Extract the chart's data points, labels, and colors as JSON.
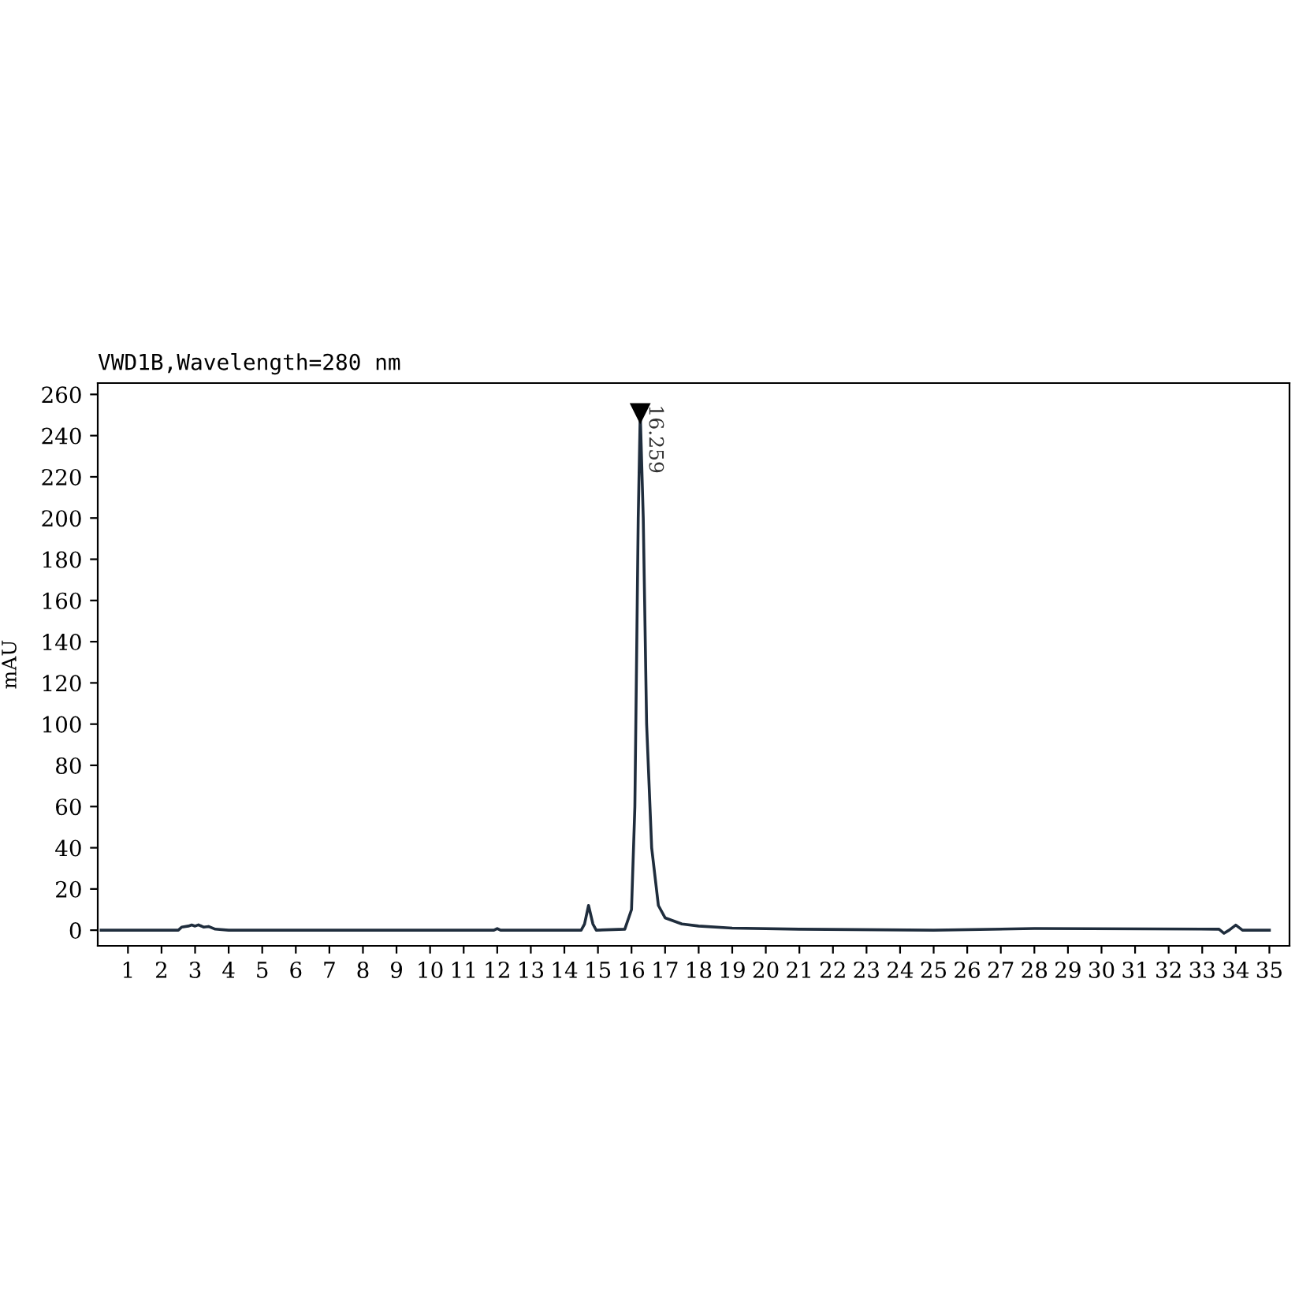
{
  "chart_data": {
    "type": "line",
    "title": "VWD1B,Wavelength=280 nm",
    "ylabel": "mAU",
    "x": [
      0.2,
      2.5,
      2.6,
      2.8,
      2.9,
      3.0,
      3.1,
      3.25,
      3.4,
      3.6,
      4,
      11.9,
      12,
      12.1,
      14.5,
      14.6,
      14.72,
      14.85,
      14.95,
      15.8,
      16.0,
      16.1,
      16.2,
      16.26,
      16.35,
      16.45,
      16.6,
      16.8,
      17.0,
      17.5,
      18,
      19,
      21,
      25,
      28,
      33.5,
      33.65,
      33.8,
      34,
      34.2,
      34.5,
      35
    ],
    "series": [
      {
        "color": "#1f2d3d",
        "values": [
          0,
          0,
          1.5,
          2,
          2.5,
          2,
          2.6,
          1.5,
          1.8,
          0.5,
          0,
          0,
          0.8,
          0,
          0,
          3,
          12,
          3,
          0,
          0.5,
          10,
          60,
          200,
          251,
          200,
          100,
          40,
          12,
          6,
          3,
          2,
          1,
          0.5,
          0,
          0.8,
          0.5,
          -1.5,
          0,
          2.5,
          0,
          0,
          0
        ]
      }
    ],
    "annotations": [
      {
        "text": "16.259",
        "x": 16.259,
        "y": 251
      }
    ],
    "xlim": [
      0.1,
      35.6
    ],
    "ylim": [
      -7.6,
      265.5
    ],
    "xticks": [
      1,
      2,
      3,
      4,
      5,
      6,
      7,
      8,
      9,
      10,
      11,
      12,
      13,
      14,
      15,
      16,
      17,
      18,
      19,
      20,
      21,
      22,
      23,
      24,
      25,
      26,
      27,
      28,
      29,
      30,
      31,
      32,
      33,
      34,
      35
    ],
    "yticks": [
      0,
      20,
      40,
      60,
      80,
      100,
      120,
      140,
      160,
      180,
      200,
      220,
      240,
      260
    ],
    "grid": false,
    "legend": false,
    "marker": "none",
    "line_style": "solid"
  }
}
